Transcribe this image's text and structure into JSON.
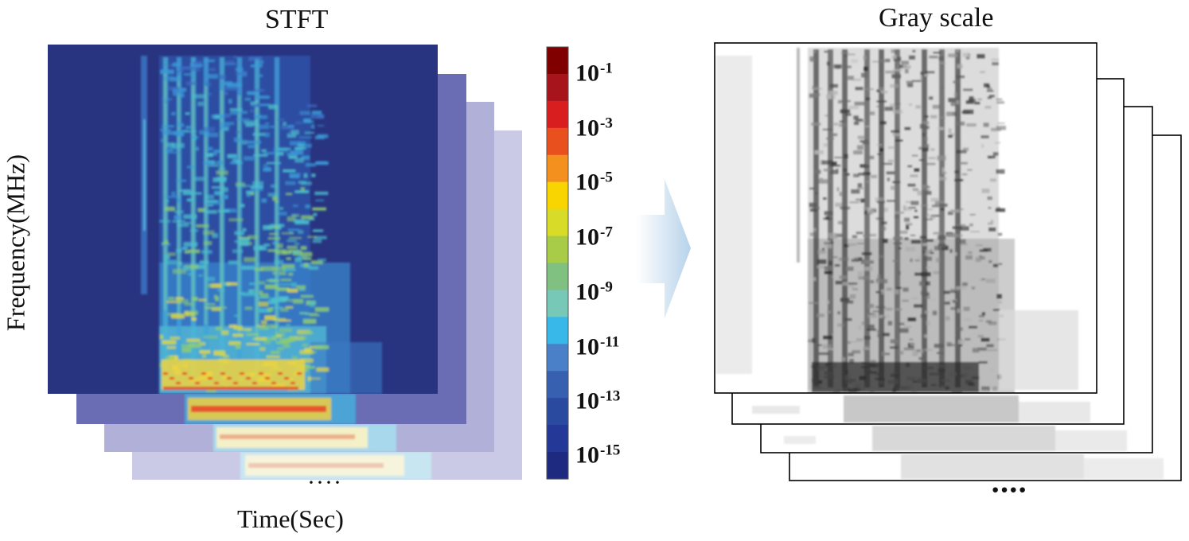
{
  "left_panel": {
    "title": "STFT",
    "x_label": "Time(Sec)",
    "y_label": "Frequency(MHz)",
    "ellipsis": "····"
  },
  "right_panel": {
    "title": "Gray scale",
    "ellipsis": "····"
  },
  "colorbar": {
    "ticks": [
      {
        "base": "10",
        "exp": "-1"
      },
      {
        "base": "10",
        "exp": "-3"
      },
      {
        "base": "10",
        "exp": "-5"
      },
      {
        "base": "10",
        "exp": "-7"
      },
      {
        "base": "10",
        "exp": "-9"
      },
      {
        "base": "10",
        "exp": "-11"
      },
      {
        "base": "10",
        "exp": "-13"
      },
      {
        "base": "10",
        "exp": "-15"
      }
    ],
    "colors": [
      "#800000",
      "#a8141c",
      "#d81e1e",
      "#e8501e",
      "#f4901e",
      "#f8d400",
      "#d8dc28",
      "#a8cc48",
      "#80c080",
      "#78c8b8",
      "#38b8e8",
      "#4a80c8",
      "#3860b0",
      "#2a4aa0",
      "#243898",
      "#1e2a80"
    ]
  },
  "colors": {
    "stft_background": "#283480",
    "stack_layer_1": "#6a6cb4",
    "stack_layer_2": "#b0b0d8",
    "stack_layer_3": "#cacae6",
    "arrow": "#bcd6ea"
  }
}
